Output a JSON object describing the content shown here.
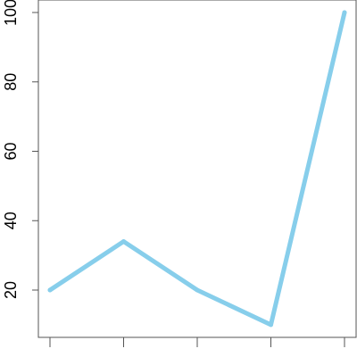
{
  "chart_data": {
    "type": "line",
    "title": "",
    "xlabel": "",
    "ylabel": "",
    "x": [
      1,
      2,
      3,
      4,
      5
    ],
    "series": [
      {
        "values": [
          20,
          34,
          20,
          10,
          100
        ]
      }
    ],
    "xlim": [
      1,
      5
    ],
    "ylim": [
      10,
      100
    ],
    "y_ticks": [
      20,
      40,
      60,
      80,
      100
    ],
    "y_tick_labels": [
      "20",
      "40",
      "60",
      "80",
      "100"
    ],
    "x_ticks": [
      1,
      2,
      3,
      4,
      5
    ],
    "x_tick_labels": [],
    "grid": false,
    "line_color": "#87ceeb",
    "axis_color": "#555555"
  }
}
